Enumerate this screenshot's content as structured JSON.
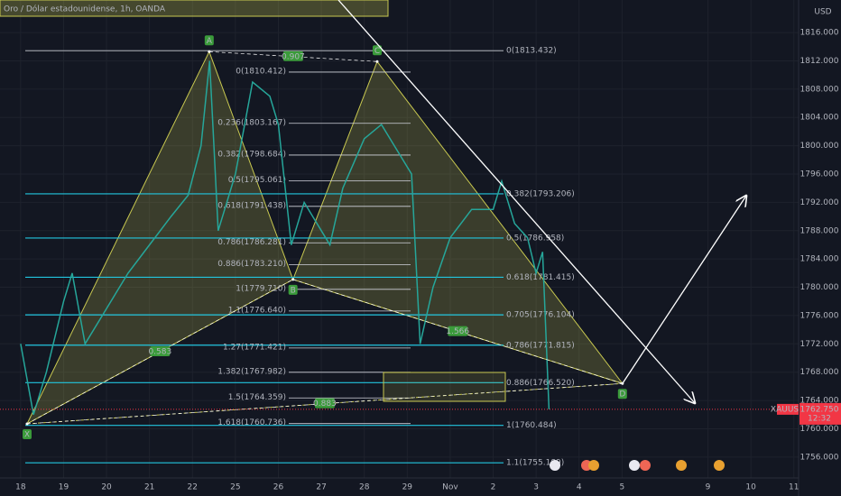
{
  "chart_data": {
    "type": "line",
    "title": "Oro / Dólar estadounidense, 1h, OANDA",
    "currency_label": "USD",
    "xlim": [
      -0.48,
      18.11
    ],
    "ylim": [
      1750.5,
      1820.6
    ],
    "xticks": [
      {
        "value": 0,
        "label": "18"
      },
      {
        "value": 1,
        "label": "19"
      },
      {
        "value": 2,
        "label": "20"
      },
      {
        "value": 3,
        "label": "21"
      },
      {
        "value": 4,
        "label": "22"
      },
      {
        "value": 5,
        "label": "25"
      },
      {
        "value": 6,
        "label": "26"
      },
      {
        "value": 7,
        "label": "27"
      },
      {
        "value": 8,
        "label": "28"
      },
      {
        "value": 9,
        "label": "29"
      },
      {
        "value": 10,
        "label": "Nov"
      },
      {
        "value": 11,
        "label": "2"
      },
      {
        "value": 12,
        "label": "3"
      },
      {
        "value": 13,
        "label": "4"
      },
      {
        "value": 14,
        "label": "5"
      },
      {
        "value": 16,
        "label": "9"
      },
      {
        "value": 17,
        "label": "10"
      },
      {
        "value": 18,
        "label": "11"
      }
    ],
    "yticks": [
      {
        "value": 1756,
        "label": "1756.000"
      },
      {
        "value": 1760,
        "label": "1760.000"
      },
      {
        "value": 1764,
        "label": "1764.000"
      },
      {
        "value": 1768,
        "label": "1768.000"
      },
      {
        "value": 1772,
        "label": "1772.000"
      },
      {
        "value": 1776,
        "label": "1776.000"
      },
      {
        "value": 1780,
        "label": "1780.000"
      },
      {
        "value": 1784,
        "label": "1784.000"
      },
      {
        "value": 1788,
        "label": "1788.000"
      },
      {
        "value": 1792,
        "label": "1792.000"
      },
      {
        "value": 1796,
        "label": "1796.000"
      },
      {
        "value": 1800,
        "label": "1800.000"
      },
      {
        "value": 1804,
        "label": "1804.000"
      },
      {
        "value": 1808,
        "label": "1808.000"
      },
      {
        "value": 1812,
        "label": "1812.000"
      },
      {
        "value": 1816,
        "label": "1816.000"
      }
    ],
    "x": [
      0,
      0.3,
      0.6,
      1.0,
      1.2,
      1.5,
      2.0,
      2.5,
      3.0,
      3.5,
      3.9,
      4.2,
      4.4,
      4.6,
      5.0,
      5.4,
      5.8,
      6.0,
      6.3,
      6.6,
      7.0,
      7.2,
      7.5,
      8.0,
      8.4,
      8.8,
      9.1,
      9.3,
      9.6,
      10.0,
      10.5,
      11.0,
      11.2,
      11.5,
      11.8,
      12.0,
      12.15,
      12.3
    ],
    "series": [
      {
        "name": "XAUUSD",
        "color": "#26a69a",
        "values": [
          1772,
          1762,
          1768,
          1778,
          1782,
          1772,
          1777,
          1782,
          1786,
          1790,
          1793,
          1800,
          1812,
          1788,
          1796,
          1809,
          1807,
          1803,
          1786,
          1792,
          1788,
          1786,
          1794,
          1801,
          1803,
          1799,
          1796,
          1772,
          1780,
          1787,
          1791,
          1791,
          1795,
          1789,
          1787,
          1782,
          1785,
          1762.75
        ]
      }
    ],
    "last_price": {
      "value": 1762.75,
      "label": "1762.750"
    },
    "countdown": "12:32",
    "pattern": {
      "color": "#c8c850",
      "points": [
        {
          "label": "X",
          "x": 0.15,
          "y": 1760.7
        },
        {
          "label": "A",
          "x": 4.39,
          "y": 1813.3
        },
        {
          "label": "B",
          "x": 6.34,
          "y": 1781.1
        },
        {
          "label": "C",
          "x": 8.3,
          "y": 1811.9
        },
        {
          "label": "D",
          "x": 14.01,
          "y": 1766.4
        }
      ],
      "ratios": [
        "0.583",
        "0.907",
        "1.566",
        "0.883"
      ]
    },
    "fib_left": [
      {
        "label": "0(1810.412)",
        "price": 1810.412
      },
      {
        "label": "0.236(1803.167)",
        "price": 1803.167
      },
      {
        "label": "0.382(1798.684)",
        "price": 1798.684
      },
      {
        "label": "0.5(1795.061)",
        "price": 1795.061
      },
      {
        "label": "0.618(1791.438)",
        "price": 1791.438
      },
      {
        "label": "0.786(1786.281)",
        "price": 1786.281
      },
      {
        "label": "0.886(1783.210)",
        "price": 1783.21
      },
      {
        "label": "1(1779.710)",
        "price": 1779.71
      },
      {
        "label": "1.1(1776.640)",
        "price": 1776.64
      },
      {
        "label": "1.27(1771.421)",
        "price": 1771.421
      },
      {
        "label": "1.382(1767.982)",
        "price": 1767.982
      },
      {
        "label": "1.5(1764.359)",
        "price": 1764.359
      },
      {
        "label": "1.618(1760.736)",
        "price": 1760.736
      }
    ],
    "fib_right": [
      {
        "label": "0(1813.432)",
        "price": 1813.432
      },
      {
        "label": "0.382(1793.206)",
        "price": 1793.206
      },
      {
        "label": "0.5(1786.958)",
        "price": 1786.958
      },
      {
        "label": "0.618(1781.415)",
        "price": 1781.415
      },
      {
        "label": "0.705(1776.104)",
        "price": 1776.104
      },
      {
        "label": "0.786(1771.815)",
        "price": 1771.815
      },
      {
        "label": "0.886(1766.520)",
        "price": 1766.52
      },
      {
        "label": "1(1760.484)",
        "price": 1760.484
      },
      {
        "label": "1.1(1755.189)",
        "price": 1755.189
      }
    ]
  }
}
